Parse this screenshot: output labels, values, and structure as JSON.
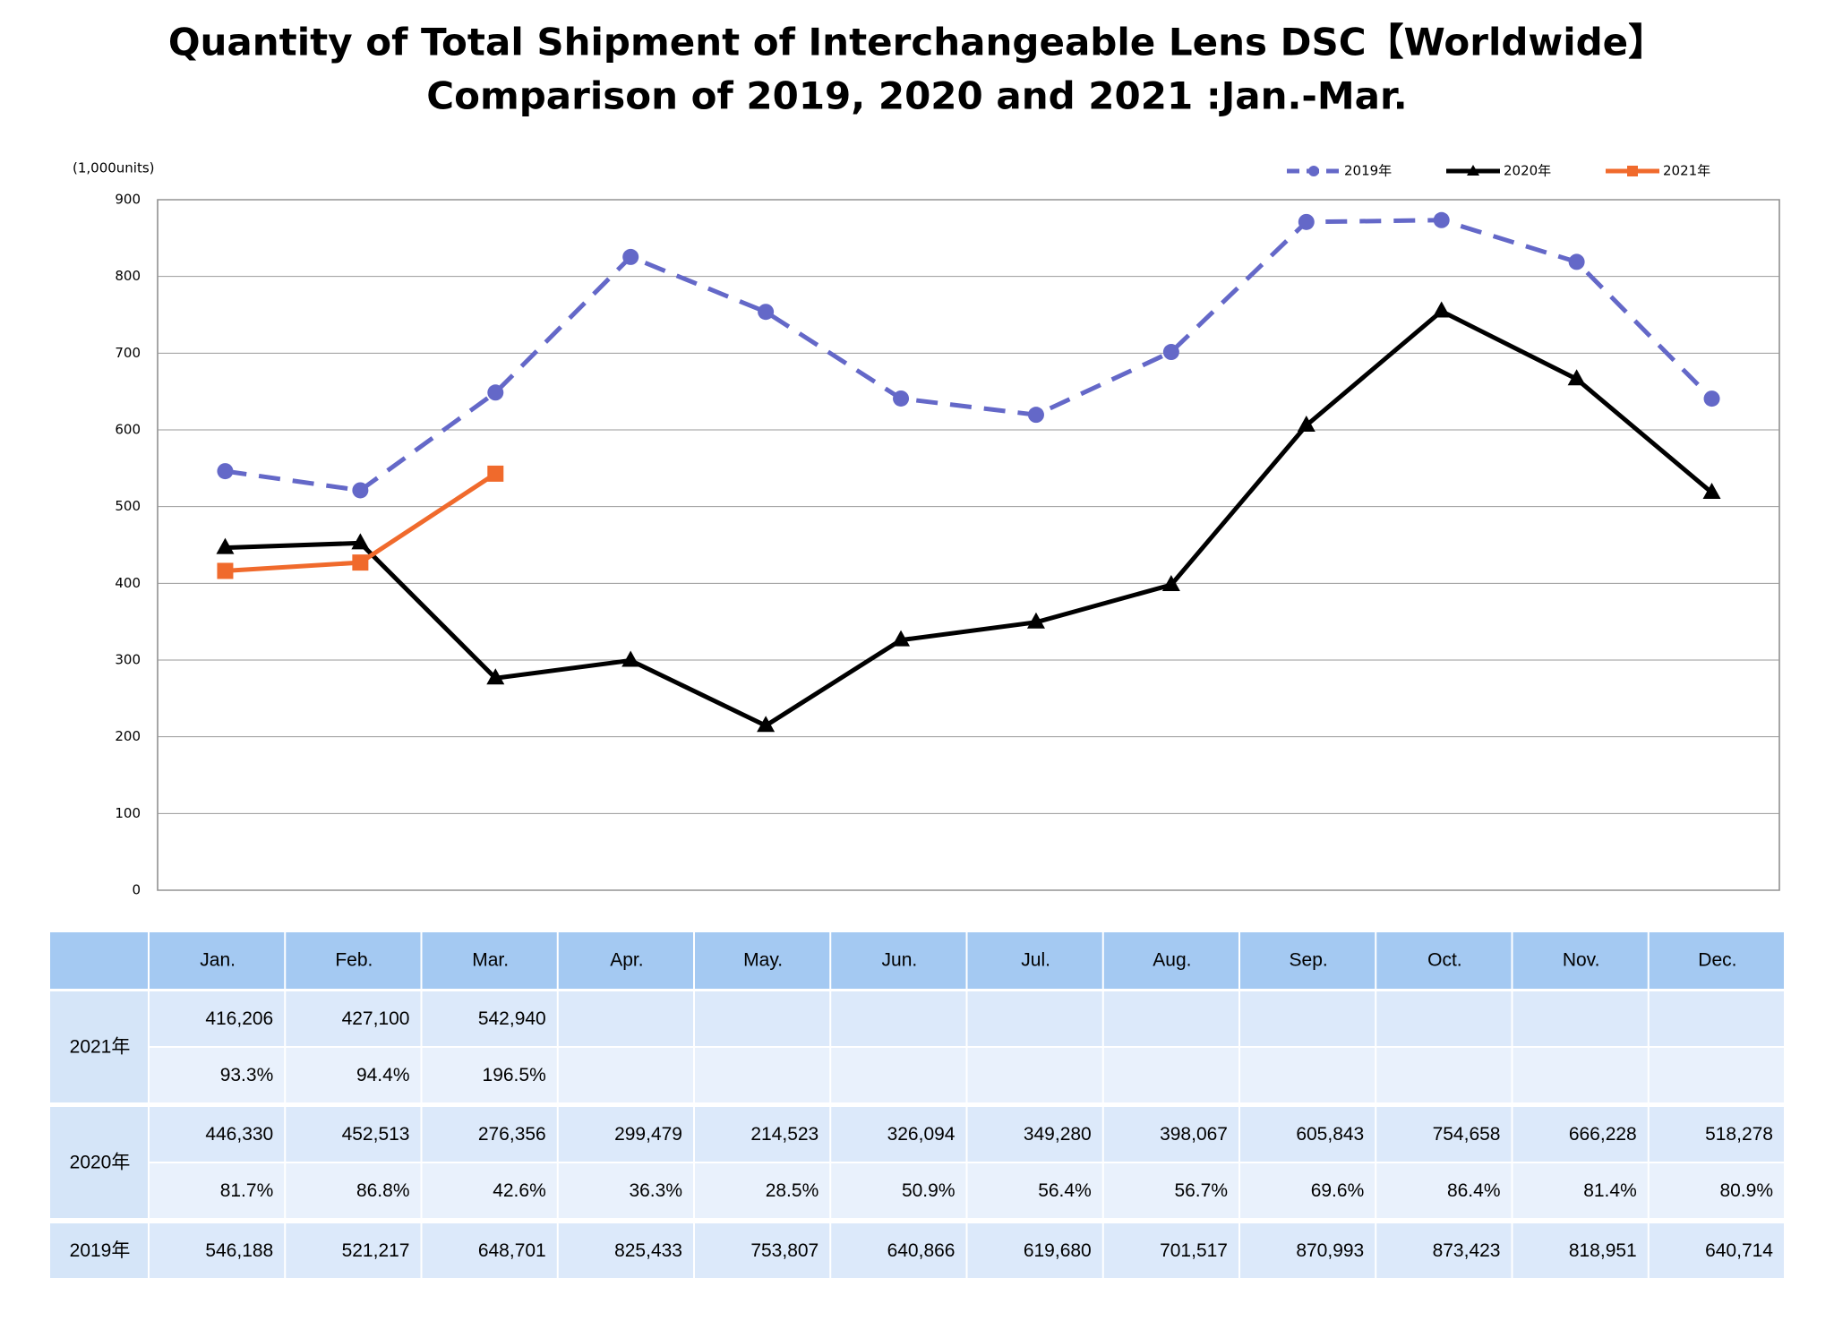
{
  "chart_data": {
    "type": "line",
    "title": "Quantity of Total Shipment of Interchangeable Lens DSC【Worldwide】",
    "subtitle": "Comparison of 2019, 2020 and 2021 :Jan.-Mar.",
    "y_label": "(1,000units)",
    "categories": [
      "Jan.",
      "Feb.",
      "Mar.",
      "Apr.",
      "May.",
      "Jun.",
      "Jul.",
      "Aug.",
      "Sep.",
      "Oct.",
      "Nov.",
      "Dec."
    ],
    "ylim": [
      0,
      900
    ],
    "yticks": [
      0,
      100,
      200,
      300,
      400,
      500,
      600,
      700,
      800,
      900
    ],
    "grid": true,
    "legend": "top-right",
    "series": [
      {
        "name": "2019年",
        "color": "#6468c8",
        "marker": "circle",
        "dashed": true,
        "values": [
          546.188,
          521.217,
          648.701,
          825.433,
          753.807,
          640.866,
          619.68,
          701.517,
          870.993,
          873.423,
          818.951,
          640.714
        ],
        "value_labels": [
          "546,188",
          "521,217",
          "648,701",
          "825,433",
          "753,807",
          "640,866",
          "619,680",
          "701,517",
          "870,993",
          "873,423",
          "818,951",
          "640,714"
        ]
      },
      {
        "name": "2020年",
        "color": "#000000",
        "marker": "triangle",
        "dashed": false,
        "values": [
          446.33,
          452.513,
          276.356,
          299.479,
          214.523,
          326.094,
          349.28,
          398.067,
          605.843,
          754.658,
          666.228,
          518.278
        ],
        "value_labels": [
          "446,330",
          "452,513",
          "276,356",
          "299,479",
          "214,523",
          "326,094",
          "349,280",
          "398,067",
          "605,843",
          "754,658",
          "666,228",
          "518,278"
        ],
        "ratio_labels": [
          "81.7%",
          "86.8%",
          "42.6%",
          "36.3%",
          "28.5%",
          "50.9%",
          "56.4%",
          "56.7%",
          "69.6%",
          "86.4%",
          "81.4%",
          "80.9%"
        ]
      },
      {
        "name": "2021年",
        "color": "#f06a2c",
        "marker": "square",
        "dashed": false,
        "values": [
          416.206,
          427.1,
          542.94,
          null,
          null,
          null,
          null,
          null,
          null,
          null,
          null,
          null
        ],
        "value_labels": [
          "416,206",
          "427,100",
          "542,940",
          null,
          null,
          null,
          null,
          null,
          null,
          null,
          null,
          null
        ],
        "ratio_labels": [
          "93.3%",
          "94.4%",
          "196.5%",
          null,
          null,
          null,
          null,
          null,
          null,
          null,
          null,
          null
        ]
      }
    ]
  }
}
